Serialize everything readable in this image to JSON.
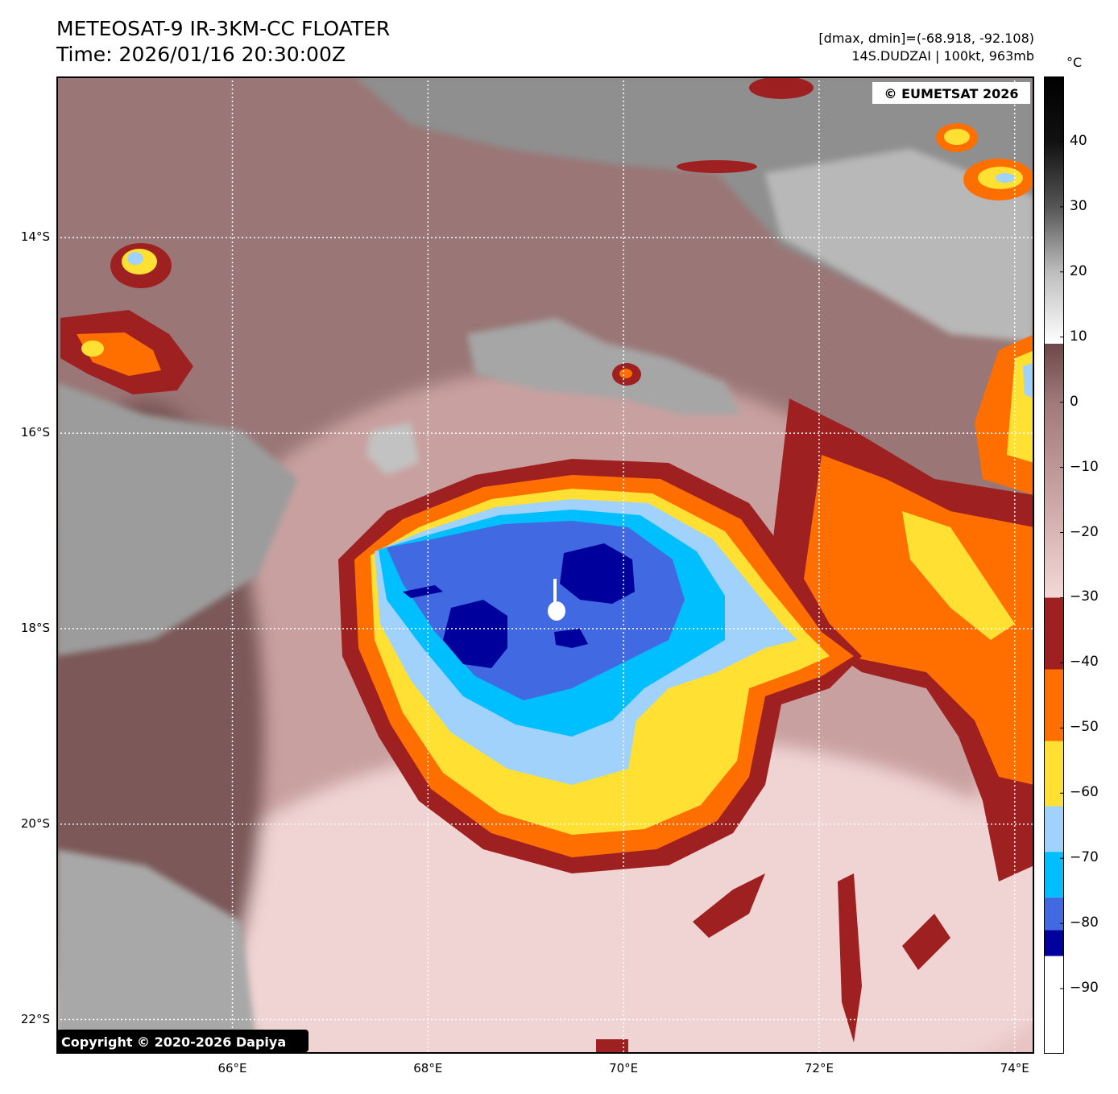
{
  "header": {
    "title_line1": "METEOSAT-9 IR-3KM-CC FLOATER",
    "title_line2": "Time: 2026/01/16 20:30:00Z",
    "dminmax": "[dmax, dmin]=(-68.918, -92.108)",
    "storm_info": "14S.DUDZAI | 100kt, 963mb"
  },
  "map": {
    "lon_range": [
      64.2,
      74.2
    ],
    "lat_range": [
      -22.35,
      -12.35
    ],
    "lon_ticks": [
      {
        "value": 66,
        "label": "66°E"
      },
      {
        "value": 68,
        "label": "68°E"
      },
      {
        "value": 70,
        "label": "70°E"
      },
      {
        "value": 72,
        "label": "72°E"
      },
      {
        "value": 74,
        "label": "74°E"
      }
    ],
    "lat_ticks": [
      {
        "value": -14,
        "label": "14°S"
      },
      {
        "value": -16,
        "label": "16°S"
      },
      {
        "value": -18,
        "label": "18°S"
      },
      {
        "value": -20,
        "label": "20°S"
      },
      {
        "value": -22,
        "label": "22°S"
      }
    ],
    "grid": true,
    "storm_center": {
      "lon": 69.3,
      "lat": -17.85
    },
    "watermark_top": "© EUMETSAT 2026",
    "watermark_bottom": "Copyright © 2020-2026 Dapiya"
  },
  "colorbar": {
    "unit": "°C",
    "range": [
      -100,
      50
    ],
    "tick_labels": [
      {
        "value": 40,
        "label": "40"
      },
      {
        "value": 30,
        "label": "30"
      },
      {
        "value": 20,
        "label": "20"
      },
      {
        "value": 10,
        "label": "10"
      },
      {
        "value": 0,
        "label": "0"
      },
      {
        "value": -10,
        "label": "−10"
      },
      {
        "value": -20,
        "label": "−20"
      },
      {
        "value": -30,
        "label": "−30"
      },
      {
        "value": -40,
        "label": "−40"
      },
      {
        "value": -50,
        "label": "−50"
      },
      {
        "value": -60,
        "label": "−60"
      },
      {
        "value": -70,
        "label": "−70"
      },
      {
        "value": -80,
        "label": "−80"
      },
      {
        "value": -90,
        "label": "−90"
      }
    ],
    "bands": [
      {
        "from": -100,
        "to": -85,
        "color": "#ffffff"
      },
      {
        "from": -85,
        "to": -81,
        "color": "#00009c"
      },
      {
        "from": -81,
        "to": -76,
        "color": "#4169e1"
      },
      {
        "from": -76,
        "to": -69,
        "color": "#00bfff"
      },
      {
        "from": -69,
        "to": -62,
        "color": "#a0d2fc"
      },
      {
        "from": -62,
        "to": -52,
        "color": "#ffe033"
      },
      {
        "from": -52,
        "to": -41,
        "color": "#ff6f00"
      },
      {
        "from": -41,
        "to": -30,
        "color": "#9e2020"
      }
    ],
    "gradient_stops": [
      {
        "value": -30,
        "color": "#f4d8d8"
      },
      {
        "value": -15,
        "color": "#cca5a5"
      },
      {
        "value": 0,
        "color": "#a07a7a"
      },
      {
        "value": 9,
        "color": "#6e4848"
      },
      {
        "value": 9.01,
        "color": "#ffffff"
      },
      {
        "value": 20,
        "color": "#bdbdbd"
      },
      {
        "value": 30,
        "color": "#555555"
      },
      {
        "value": 40,
        "color": "#111111"
      },
      {
        "value": 50,
        "color": "#000000"
      }
    ]
  }
}
